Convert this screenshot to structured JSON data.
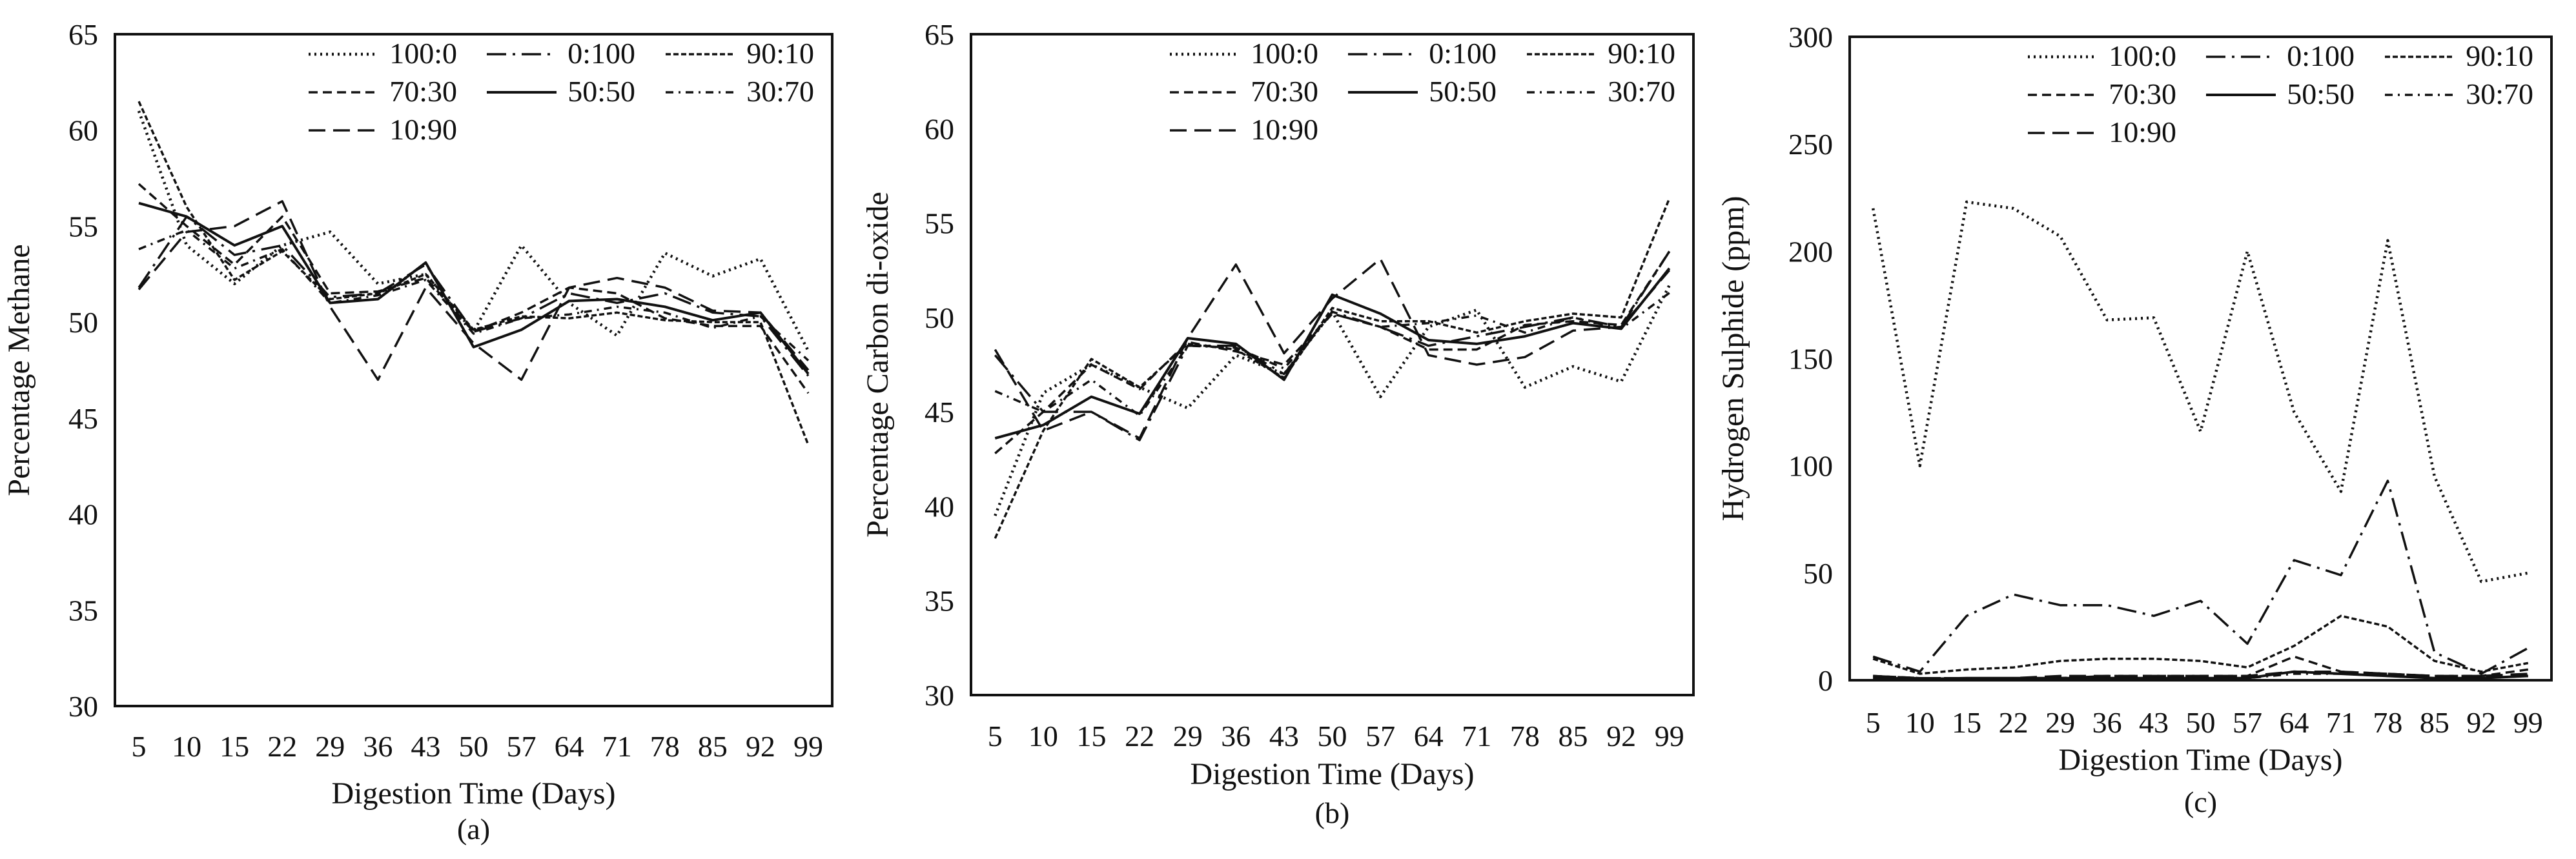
{
  "chart_data": [
    {
      "type": "line",
      "panel_label": "(a)",
      "xlabel": "Digestion Time (Days)",
      "ylabel": "Percentage Methane",
      "ylim": [
        30,
        65
      ],
      "yticks": [
        30,
        35,
        40,
        45,
        50,
        55,
        60,
        65
      ],
      "grid": false,
      "legend": "top-right",
      "categories": [
        "5",
        "10",
        "15",
        "22",
        "29",
        "36",
        "43",
        "50",
        "57",
        "64",
        "71",
        "78",
        "85",
        "92",
        "99"
      ],
      "series": [
        {
          "name": "100:0",
          "style": "dotted",
          "values": [
            61.0,
            54.0,
            52.0,
            54.0,
            54.7,
            52.0,
            52.5,
            49.5,
            54.0,
            51.0,
            49.3,
            53.6,
            52.4,
            53.3,
            48.5
          ]
        },
        {
          "name": "0:100",
          "style": "long-dash-dot",
          "values": [
            51.8,
            55.5,
            53.5,
            54.0,
            51.3,
            51.5,
            53.0,
            49.5,
            50.2,
            51.5,
            51.0,
            51.5,
            50.5,
            50.3,
            47.2
          ]
        },
        {
          "name": "90:10",
          "style": "short-dash",
          "values": [
            61.5,
            56.0,
            52.2,
            53.7,
            51.2,
            51.5,
            52.5,
            49.6,
            50.3,
            50.2,
            50.5,
            50.1,
            50.0,
            50.0,
            43.6
          ]
        },
        {
          "name": "70:30",
          "style": "dash",
          "values": [
            57.2,
            55.0,
            53.0,
            55.5,
            51.5,
            51.6,
            52.3,
            49.5,
            50.5,
            51.8,
            51.5,
            50.2,
            49.8,
            49.8,
            46.3
          ]
        },
        {
          "name": "50:50",
          "style": "solid",
          "values": [
            56.2,
            55.5,
            54.0,
            55.0,
            51.0,
            51.2,
            53.1,
            48.7,
            49.6,
            51.1,
            51.2,
            50.8,
            50.1,
            50.5,
            47.3
          ]
        },
        {
          "name": "30:70",
          "style": "dash-dot",
          "values": [
            53.8,
            54.8,
            52.8,
            53.8,
            51.0,
            51.4,
            52.2,
            49.4,
            50.2,
            50.4,
            50.8,
            50.5,
            49.7,
            50.3,
            48.0
          ]
        },
        {
          "name": "10:90",
          "style": "long-dash",
          "values": [
            51.7,
            54.7,
            55.0,
            56.3,
            50.8,
            47.0,
            51.8,
            48.9,
            47.0,
            51.8,
            52.3,
            51.8,
            50.6,
            50.5,
            47.5
          ]
        }
      ]
    },
    {
      "type": "line",
      "panel_label": "(b)",
      "xlabel": "Digestion Time (Days)",
      "ylabel": "Percentage Carbon di-oxide",
      "ylim": [
        30,
        65
      ],
      "yticks": [
        30,
        35,
        40,
        45,
        50,
        55,
        60,
        65
      ],
      "grid": false,
      "legend": "top-right",
      "categories": [
        "5",
        "10",
        "15",
        "22",
        "29",
        "36",
        "43",
        "50",
        "57",
        "64",
        "71",
        "78",
        "85",
        "92",
        "99"
      ],
      "series": [
        {
          "name": "100:0",
          "style": "dotted",
          "values": [
            39.5,
            46.0,
            47.5,
            46.3,
            45.2,
            48.0,
            47.0,
            50.3,
            45.8,
            49.5,
            50.4,
            46.3,
            47.4,
            46.6,
            51.7
          ]
        },
        {
          "name": "0:100",
          "style": "long-dash-dot",
          "values": [
            48.0,
            45.0,
            45.0,
            43.5,
            48.5,
            48.5,
            47.0,
            50.3,
            49.5,
            48.5,
            49.0,
            49.5,
            50.0,
            49.5,
            53.5
          ]
        },
        {
          "name": "90:10",
          "style": "short-dash",
          "values": [
            38.3,
            44.0,
            47.8,
            46.3,
            48.6,
            48.3,
            46.8,
            50.5,
            49.8,
            49.8,
            49.2,
            49.8,
            50.2,
            50.0,
            56.3
          ]
        },
        {
          "name": "70:30",
          "style": "dash",
          "values": [
            42.8,
            45.0,
            47.5,
            46.2,
            48.7,
            48.2,
            47.5,
            50.2,
            49.5,
            48.3,
            48.3,
            49.6,
            49.8,
            49.6,
            53.5
          ]
        },
        {
          "name": "50:50",
          "style": "solid",
          "values": [
            43.6,
            44.3,
            45.8,
            44.9,
            48.9,
            48.6,
            46.7,
            51.2,
            50.2,
            48.8,
            48.6,
            49.0,
            49.7,
            49.4,
            52.6
          ]
        },
        {
          "name": "30:70",
          "style": "dash-dot",
          "values": [
            46.1,
            45.0,
            46.7,
            44.8,
            48.5,
            48.4,
            47.3,
            50.2,
            49.5,
            49.7,
            50.1,
            49.2,
            50.0,
            49.4,
            51.3
          ]
        },
        {
          "name": "10:90",
          "style": "long-dash",
          "values": [
            48.3,
            44.0,
            45.0,
            43.6,
            48.9,
            52.8,
            48.1,
            51.0,
            53.1,
            48.0,
            47.5,
            47.9,
            49.3,
            49.5,
            52.5
          ]
        }
      ]
    },
    {
      "type": "line",
      "panel_label": "(c)",
      "xlabel": "Digestion Time (Days)",
      "ylabel": "Hydrogen Sulphide (ppm)",
      "ylim": [
        0,
        300
      ],
      "yticks": [
        0,
        50,
        100,
        150,
        200,
        250,
        300
      ],
      "grid": false,
      "legend": "top-right",
      "categories": [
        "5",
        "10",
        "15",
        "22",
        "29",
        "36",
        "43",
        "50",
        "57",
        "64",
        "71",
        "78",
        "85",
        "92",
        "99"
      ],
      "series": [
        {
          "name": "100:0",
          "style": "dotted",
          "values": [
            220,
            100,
            223,
            220,
            207,
            168,
            169,
            116,
            200,
            125,
            88,
            205,
            95,
            46,
            50
          ]
        },
        {
          "name": "0:100",
          "style": "long-dash-dot",
          "values": [
            11,
            4,
            30,
            40,
            35,
            35,
            30,
            37,
            17,
            56,
            49,
            93,
            13,
            3,
            15
          ]
        },
        {
          "name": "90:10",
          "style": "short-dash",
          "values": [
            10,
            3,
            5,
            6,
            9,
            10,
            10,
            9,
            6,
            16,
            30,
            25,
            9,
            4,
            8
          ]
        },
        {
          "name": "70:30",
          "style": "dash",
          "values": [
            2,
            1,
            1,
            1,
            1,
            2,
            2,
            2,
            2,
            11,
            4,
            3,
            2,
            2,
            5
          ]
        },
        {
          "name": "50:50",
          "style": "solid",
          "values": [
            1,
            0.5,
            1,
            1,
            1,
            1,
            1,
            1,
            1,
            4,
            3,
            2,
            1,
            1,
            2
          ]
        },
        {
          "name": "30:70",
          "style": "dash-dot",
          "values": [
            1,
            1,
            1,
            1,
            1,
            1,
            1,
            1,
            1,
            3,
            3,
            2,
            1,
            1,
            2
          ]
        },
        {
          "name": "10:90",
          "style": "long-dash",
          "values": [
            2,
            1,
            1,
            1,
            2,
            2,
            2,
            2,
            2,
            4,
            4,
            3,
            2,
            2,
            3
          ]
        }
      ]
    }
  ]
}
